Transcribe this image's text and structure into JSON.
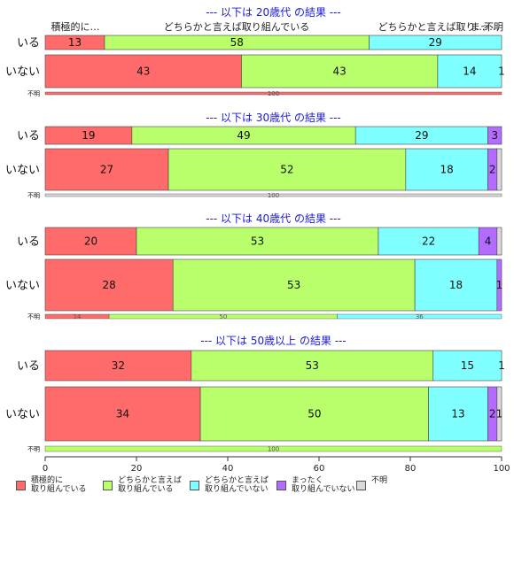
{
  "chart_data": {
    "type": "bar",
    "orientation": "horizontal",
    "stacked": true,
    "xlim": [
      0,
      100
    ],
    "xticks": [
      0,
      20,
      40,
      60,
      80,
      100
    ],
    "categories": [
      "積極的に\n取り組んでいる",
      "どちらかと言えば\n取り組んでいる",
      "どちらかと言えば\n取り組んでいない",
      "まったく\n取り組んでいない",
      "不明"
    ],
    "colors": [
      "#FF6B6B",
      "#B8FF6B",
      "#7FFFFF",
      "#B46BFF",
      "#D9D9D9"
    ],
    "top_labels": [
      "積極的に…",
      "どちらかと言えば取り組んでいる",
      "どちらかと言えば取り…",
      "まっ…",
      "不明"
    ],
    "panels": [
      {
        "title": "--- 以下は 20歳代 の結果 ---",
        "rows": [
          {
            "label": "いる",
            "values": [
              13,
              58,
              29,
              1,
              0
            ],
            "shown": [
              "13",
              "58",
              "29",
              "",
              ""
            ]
          },
          {
            "label": "いない",
            "values": [
              43,
              43,
              14,
              1,
              0
            ],
            "shown": [
              "43",
              "43",
              "14",
              "1",
              ""
            ]
          },
          {
            "label": "不明",
            "values": [
              100,
              0,
              0,
              0,
              0
            ],
            "shown": [
              "100",
              "",
              "",
              "",
              ""
            ]
          }
        ]
      },
      {
        "title": "--- 以下は 30歳代 の結果 ---",
        "rows": [
          {
            "label": "いる",
            "values": [
              19,
              49,
              29,
              3,
              0
            ],
            "shown": [
              "19",
              "49",
              "29",
              "3",
              ""
            ]
          },
          {
            "label": "いない",
            "values": [
              27,
              52,
              18,
              2,
              1
            ],
            "shown": [
              "27",
              "52",
              "18",
              "2",
              ""
            ]
          },
          {
            "label": "不明",
            "values": [
              0,
              0,
              0,
              0,
              100
            ],
            "shown": [
              "",
              "",
              "",
              "",
              "100"
            ]
          }
        ]
      },
      {
        "title": "--- 以下は 40歳代 の結果 ---",
        "rows": [
          {
            "label": "いる",
            "values": [
              20,
              53,
              22,
              4,
              1
            ],
            "shown": [
              "20",
              "53",
              "22",
              "4",
              ""
            ]
          },
          {
            "label": "いない",
            "values": [
              28,
              53,
              18,
              1,
              0
            ],
            "shown": [
              "28",
              "53",
              "18",
              "1",
              ""
            ]
          },
          {
            "label": "不明",
            "values": [
              14,
              50,
              36,
              0,
              0
            ],
            "shown": [
              "14",
              "50",
              "36",
              "",
              ""
            ]
          }
        ]
      },
      {
        "title": "--- 以下は 50歳以上 の結果 ---",
        "rows": [
          {
            "label": "いる",
            "values": [
              32,
              53,
              15,
              1,
              0
            ],
            "shown": [
              "32",
              "53",
              "15",
              "1",
              ""
            ]
          },
          {
            "label": "いない",
            "values": [
              34,
              50,
              13,
              2,
              1
            ],
            "shown": [
              "34",
              "50",
              "13",
              "2",
              "1"
            ]
          },
          {
            "label": "不明",
            "values": [
              0,
              100,
              0,
              0,
              0
            ],
            "shown": [
              "",
              "100",
              "",
              "",
              ""
            ]
          }
        ]
      }
    ]
  }
}
